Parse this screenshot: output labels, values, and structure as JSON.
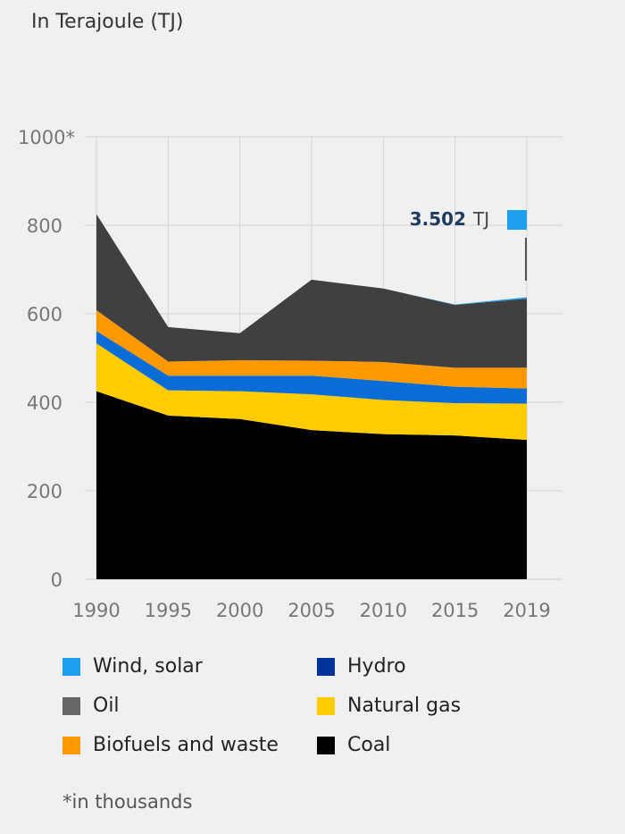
{
  "subtitle": "In Terajoule (TJ)",
  "footnote": "*in thousands",
  "annotation": {
    "value": "3.502",
    "unit": "TJ",
    "color": "#1ea0f0"
  },
  "chart_data": {
    "type": "area",
    "stacked": true,
    "x": [
      "1990",
      "1995",
      "2000",
      "2005",
      "2010",
      "2015",
      "2019"
    ],
    "ylim": [
      0,
      1000
    ],
    "yticks": [
      0,
      200,
      400,
      600,
      800,
      1000
    ],
    "ytick_labels": [
      "0",
      "200",
      "400",
      "600",
      "800",
      "1000*"
    ],
    "grid": true,
    "series": [
      {
        "name": "Coal",
        "color": "#000000",
        "values": [
          425,
          370,
          362,
          337,
          328,
          325,
          315
        ]
      },
      {
        "name": "Natural gas",
        "color": "#ffcc00",
        "values": [
          108,
          57,
          63,
          81,
          77,
          73,
          82
        ]
      },
      {
        "name": "Hydro",
        "color": "#0a6cd6",
        "values": [
          28,
          33,
          35,
          42,
          43,
          37,
          34
        ]
      },
      {
        "name": "Biofuels and waste",
        "color": "#ff9900",
        "values": [
          47,
          32,
          35,
          34,
          43,
          43,
          47
        ]
      },
      {
        "name": "Oil",
        "color": "#404040",
        "values": [
          217,
          78,
          61,
          183,
          166,
          142,
          156
        ]
      },
      {
        "name": "Wind, solar",
        "color": "#1ea0f0",
        "values": [
          0,
          0,
          0,
          0,
          0,
          1,
          3.5
        ]
      }
    ],
    "legend": [
      {
        "label": "Wind, solar",
        "color": "#1ea0f0"
      },
      {
        "label": "Hydro",
        "color": "#003399"
      },
      {
        "label": "Oil",
        "color": "#666666"
      },
      {
        "label": "Natural gas",
        "color": "#ffcc00"
      },
      {
        "label": "Biofuels and waste",
        "color": "#ff9900"
      },
      {
        "label": "Coal",
        "color": "#000000"
      }
    ]
  }
}
